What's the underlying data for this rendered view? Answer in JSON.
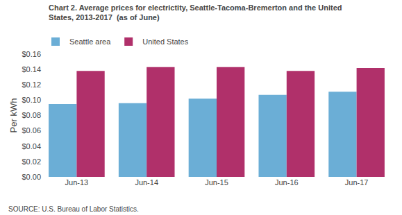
{
  "chart_data": {
    "type": "bar",
    "title": "Chart 2. Average prices for electrictity, Seattle-Tacoma-Bremerton and the United\nStates, 2013-2017  (as of June)",
    "ylabel": "Per kWh",
    "annotations": [
      "SOURCE: U.S. Bureau of Labor Statistics."
    ],
    "categories": [
      "Jun-13",
      "Jun-14",
      "Jun-15",
      "Jun-16",
      "Jun-17"
    ],
    "series": [
      {
        "name": "Seattle area",
        "color": "#6baed6",
        "values": [
          0.095,
          0.096,
          0.102,
          0.107,
          0.111
        ]
      },
      {
        "name": "United States",
        "color": "#b0306a",
        "values": [
          0.138,
          0.143,
          0.143,
          0.138,
          0.142
        ]
      }
    ],
    "ylim": [
      0,
      0.16
    ],
    "yticks": [
      {
        "value": 0,
        "label": "$0.00"
      },
      {
        "value": 0.02,
        "label": "$0.02"
      },
      {
        "value": 0.04,
        "label": "$0.04"
      },
      {
        "value": 0.06,
        "label": "$0.06"
      },
      {
        "value": 0.08,
        "label": "$0.08"
      },
      {
        "value": 0.1,
        "label": "$0.10"
      },
      {
        "value": 0.12,
        "label": "$0.12"
      },
      {
        "value": 0.14,
        "label": "$0.14"
      },
      {
        "value": 0.16,
        "label": "$0.16"
      }
    ],
    "grid": false,
    "legend": "upper left"
  }
}
